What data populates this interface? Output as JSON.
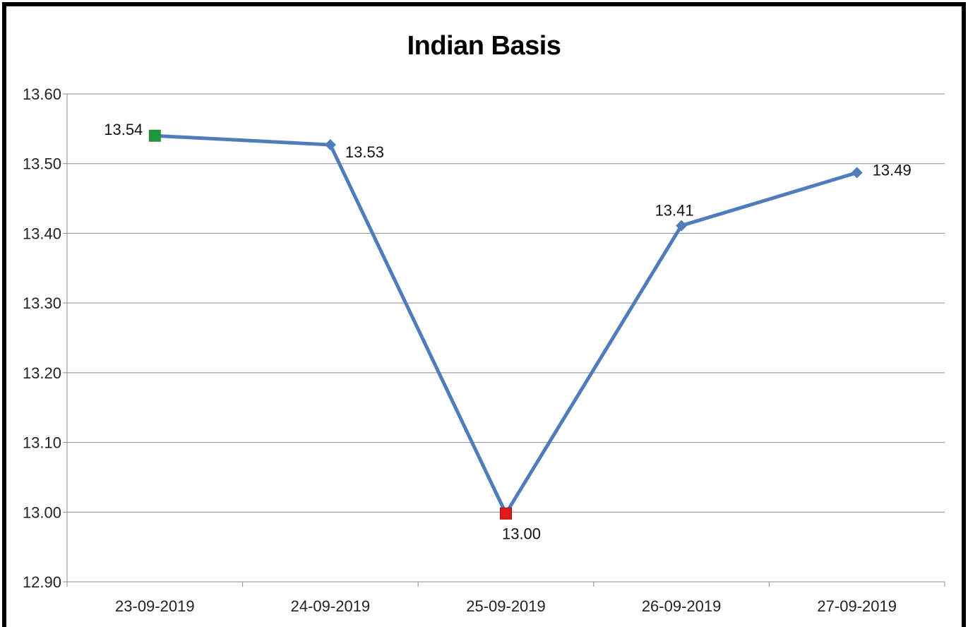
{
  "chart_data": {
    "type": "line",
    "title": "Indian Basis",
    "categories": [
      "23-09-2019",
      "24-09-2019",
      "25-09-2019",
      "26-09-2019",
      "27-09-2019"
    ],
    "series": [
      {
        "values": [
          13.54,
          13.527,
          12.998,
          13.411,
          13.487
        ],
        "labels": [
          "13.54",
          "13.53",
          "13.00",
          "13.41",
          "13.49"
        ],
        "color": "#4f7dbb"
      }
    ],
    "highlights": {
      "max_color": "#1a9a3a",
      "min_color": "#e31a1c"
    },
    "ylim": [
      12.9,
      13.6
    ],
    "yticks": [
      "12.90",
      "13.00",
      "13.10",
      "13.20",
      "13.30",
      "13.40",
      "13.50",
      "13.60"
    ],
    "grid": true
  }
}
